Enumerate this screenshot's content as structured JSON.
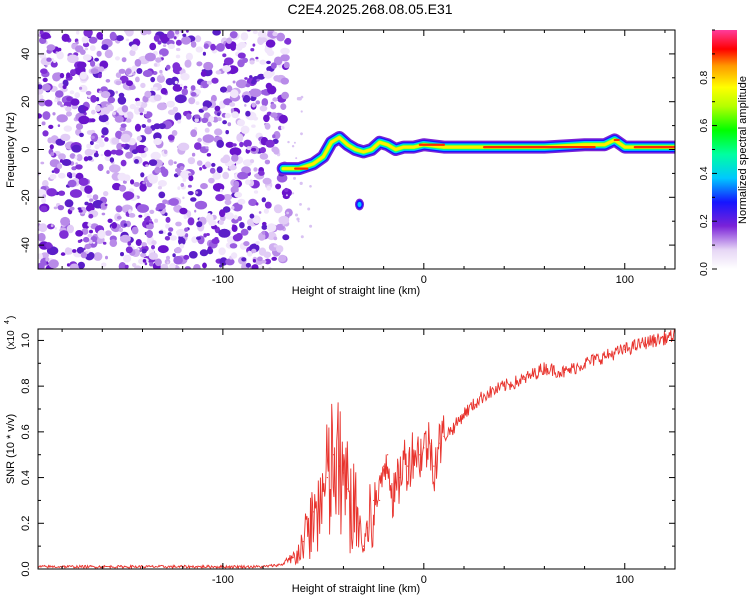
{
  "title": "C2E4.2025.268.08.05.E31",
  "chart_data": [
    {
      "type": "heatmap",
      "title": "C2E4.2025.268.08.05.E31",
      "xlabel": "Height of straight line (km)",
      "ylabel": "Frequency (Hz)",
      "xlim": [
        -192,
        125
      ],
      "ylim": [
        -50,
        50
      ],
      "x_ticks": [
        -100,
        0,
        100
      ],
      "y_ticks": [
        -40,
        -20,
        0,
        20,
        40
      ],
      "noise_region_x": [
        -192,
        -70
      ],
      "signal_ridge": {
        "x": [
          -70,
          -62,
          -55,
          -50,
          -46,
          -42,
          -38,
          -34,
          -30,
          -26,
          -22,
          -18,
          -14,
          -10,
          -5,
          0,
          10,
          20,
          40,
          60,
          80,
          90,
          95,
          100,
          110,
          125
        ],
        "y": [
          -8,
          -8,
          -6,
          -3,
          3,
          5,
          2,
          0,
          -1,
          0,
          3,
          2,
          0,
          1,
          1,
          2,
          1,
          1,
          1,
          1,
          2,
          2,
          4,
          1,
          1,
          1
        ]
      },
      "isolated_blob": {
        "x": -32,
        "y": -23
      },
      "colorbar": {
        "label": "Normalized spectral amplitude",
        "ticks": [
          0.0,
          0.2,
          0.4,
          0.6,
          0.8
        ],
        "range": [
          0,
          1
        ]
      }
    },
    {
      "type": "line",
      "xlabel": "Height of straight line (km)",
      "ylabel": "SNR (10 * v/v)",
      "y_multiplier": "(x10",
      "y_multiplier_exp": "4",
      "xlim": [
        -192,
        125
      ],
      "ylim": [
        0,
        1.05
      ],
      "x_ticks": [
        -100,
        0,
        100
      ],
      "y_ticks": [
        0.0,
        0.2,
        0.4,
        0.6,
        0.8,
        1.0
      ],
      "series": [
        {
          "name": "SNR",
          "color": "#e8332d",
          "x": [
            -192,
            -150,
            -100,
            -80,
            -70,
            -65,
            -60,
            -55,
            -50,
            -48,
            -45,
            -42,
            -40,
            -38,
            -35,
            -32,
            -30,
            -28,
            -25,
            -22,
            -20,
            -18,
            -15,
            -12,
            -10,
            -8,
            -5,
            -2,
            0,
            3,
            5,
            8,
            10,
            15,
            20,
            25,
            30,
            40,
            50,
            60,
            70,
            80,
            90,
            100,
            110,
            125
          ],
          "values": [
            0.01,
            0.01,
            0.01,
            0.01,
            0.02,
            0.05,
            0.12,
            0.25,
            0.35,
            0.4,
            0.5,
            0.45,
            0.42,
            0.35,
            0.3,
            0.2,
            0.1,
            0.18,
            0.3,
            0.3,
            0.45,
            0.5,
            0.3,
            0.4,
            0.48,
            0.45,
            0.52,
            0.5,
            0.53,
            0.55,
            0.45,
            0.55,
            0.58,
            0.62,
            0.68,
            0.72,
            0.76,
            0.8,
            0.83,
            0.88,
            0.86,
            0.9,
            0.93,
            0.96,
            0.99,
            1.02
          ]
        }
      ]
    }
  ]
}
